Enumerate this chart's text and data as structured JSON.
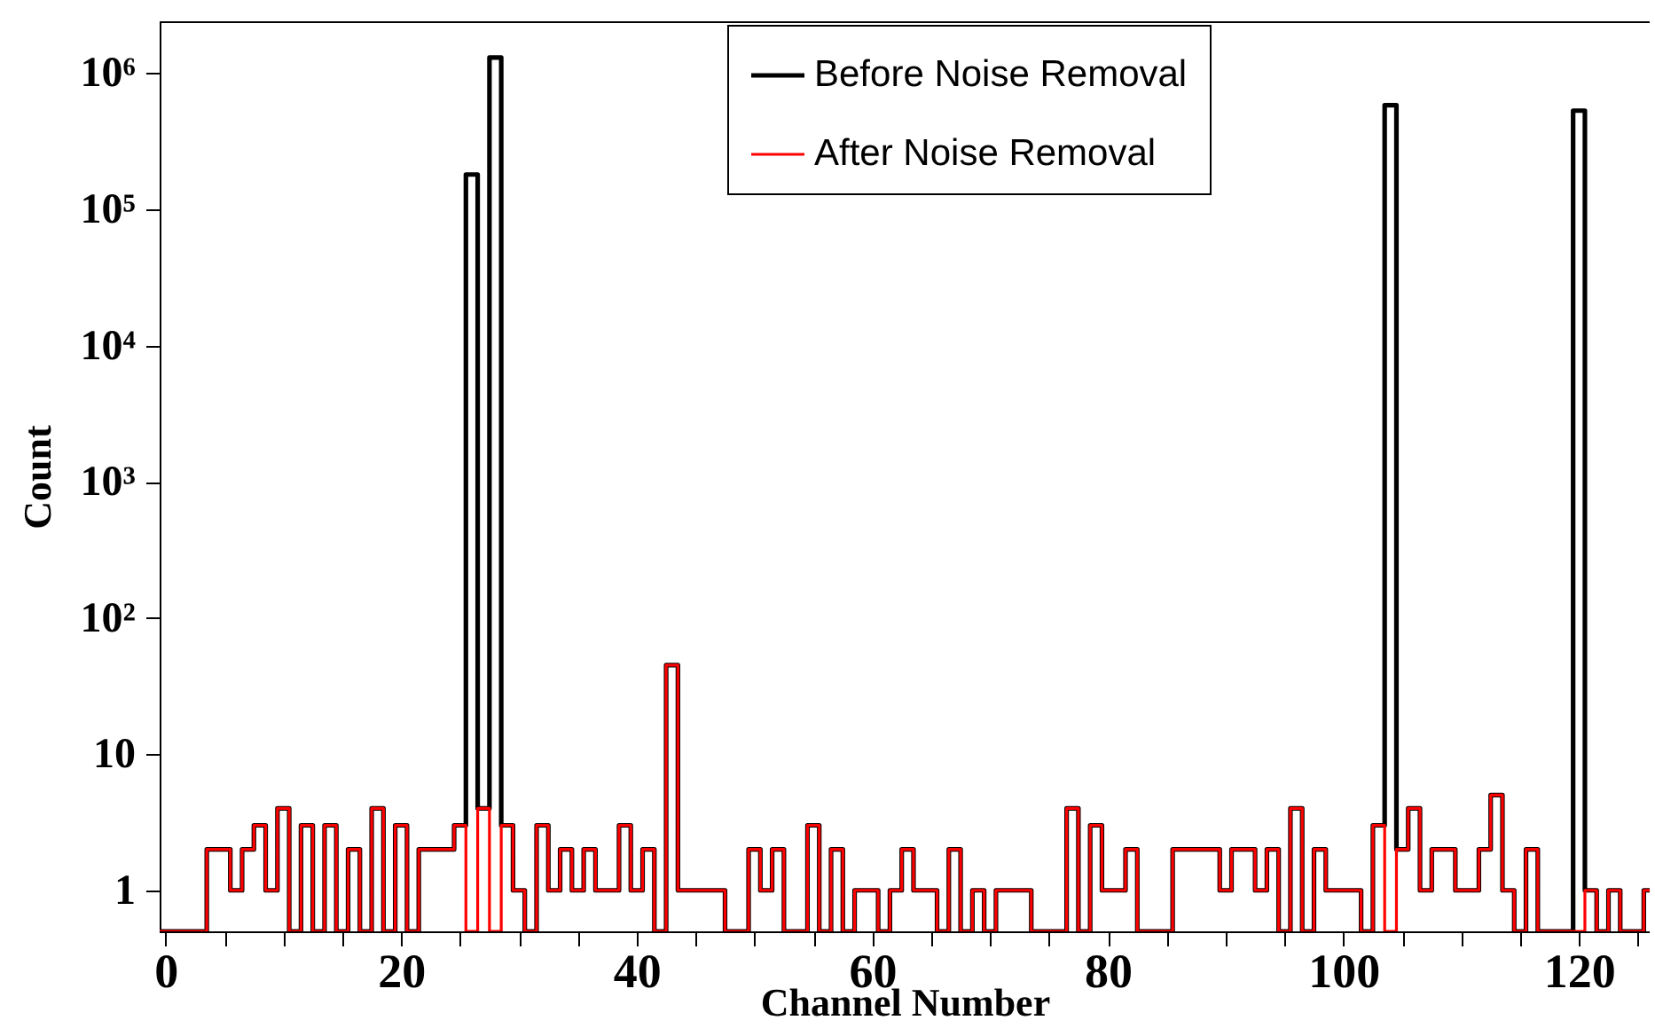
{
  "chart_data": {
    "type": "histogram",
    "xlabel": "Channel Number",
    "ylabel": "Count",
    "bins": [
      -0.5,
      0.5,
      1.5,
      2.5,
      3.5,
      4.5,
      5.5,
      6.5,
      7.5,
      8.5,
      9.5,
      10.5,
      11.5,
      12.5,
      13.5,
      14.5,
      15.5,
      16.5,
      17.5,
      18.5,
      19.5,
      20.5,
      21.5,
      22.5,
      23.5,
      24.5,
      25.5,
      26.5,
      27.5,
      28.5,
      29.5,
      30.5,
      31.5,
      32.5,
      33.5,
      34.5,
      35.5,
      36.5,
      37.5,
      38.5,
      39.5,
      40.5,
      41.5,
      42.5,
      43.5,
      44.5,
      45.5,
      46.5,
      47.5,
      48.5,
      49.5,
      50.5,
      51.5,
      52.5,
      53.5,
      54.5,
      55.5,
      56.5,
      57.5,
      58.5,
      59.5,
      60.5,
      61.5,
      62.5,
      63.5,
      64.5,
      65.5,
      66.5,
      67.5,
      68.5,
      69.5,
      70.5,
      71.5,
      72.5,
      73.5,
      74.5,
      75.5,
      76.5,
      77.5,
      78.5,
      79.5,
      80.5,
      81.5,
      82.5,
      83.5,
      84.5,
      85.5,
      86.5,
      87.5,
      88.5,
      89.5,
      90.5,
      91.5,
      92.5,
      93.5,
      94.5,
      95.5,
      96.5,
      97.5,
      98.5,
      99.5,
      100.5,
      101.5,
      102.5,
      103.5,
      104.5,
      105.5,
      106.5,
      107.5,
      108.5,
      109.5,
      110.5,
      111.5,
      112.5,
      113.5,
      114.5,
      115.5,
      116.5,
      117.5,
      118.5,
      119.5,
      120.5,
      121.5,
      122.5,
      123.5,
      124.5,
      125.5,
      126
    ],
    "series": [
      {
        "name": "Before Noise Removal",
        "color": "#000000",
        "values": [
          null,
          null,
          null,
          null,
          2,
          2,
          1,
          2,
          3,
          1,
          4,
          null,
          3,
          null,
          3,
          null,
          2,
          null,
          4,
          null,
          3,
          null,
          2,
          2,
          2,
          3,
          180000,
          4,
          1300000,
          3,
          1,
          null,
          3,
          1,
          2,
          1,
          2,
          1,
          1,
          3,
          1,
          2,
          null,
          45,
          1,
          1,
          1,
          1,
          null,
          null,
          2,
          1,
          2,
          null,
          null,
          3,
          null,
          2,
          null,
          1,
          1,
          null,
          1,
          2,
          1,
          1,
          null,
          2,
          null,
          1,
          null,
          1,
          1,
          1,
          null,
          null,
          null,
          4,
          null,
          3,
          1,
          1,
          2,
          null,
          null,
          null,
          2,
          2,
          2,
          2,
          1,
          2,
          2,
          1,
          2,
          null,
          4,
          null,
          2,
          1,
          1,
          1,
          null,
          3,
          580000,
          2,
          4,
          1,
          2,
          2,
          1,
          1,
          2,
          5,
          1,
          null,
          2,
          null,
          null,
          null,
          530000,
          1,
          null,
          1,
          null,
          null,
          1
        ]
      },
      {
        "name": "After Noise Removal",
        "color": "#ff0000",
        "values": [
          null,
          null,
          null,
          null,
          2,
          2,
          1,
          2,
          3,
          1,
          4,
          null,
          3,
          null,
          3,
          null,
          2,
          null,
          4,
          null,
          3,
          null,
          2,
          2,
          2,
          3,
          null,
          4,
          null,
          3,
          1,
          null,
          3,
          1,
          2,
          1,
          2,
          1,
          1,
          3,
          1,
          2,
          null,
          45,
          1,
          1,
          1,
          1,
          null,
          null,
          2,
          1,
          2,
          null,
          null,
          3,
          null,
          2,
          null,
          1,
          1,
          null,
          1,
          2,
          1,
          1,
          null,
          2,
          null,
          1,
          null,
          1,
          1,
          1,
          null,
          null,
          null,
          4,
          null,
          3,
          1,
          1,
          2,
          null,
          null,
          null,
          2,
          2,
          2,
          2,
          1,
          2,
          2,
          1,
          2,
          null,
          4,
          null,
          2,
          1,
          1,
          1,
          null,
          3,
          null,
          2,
          4,
          1,
          2,
          2,
          1,
          1,
          2,
          5,
          1,
          null,
          2,
          null,
          null,
          null,
          null,
          1,
          null,
          1,
          null,
          null,
          1
        ]
      }
    ],
    "xlim": [
      -0.5,
      126
    ],
    "xticks": [
      0,
      {
        "value": 5,
        "label": null
      },
      {
        "value": 10,
        "label": null
      },
      {
        "value": 15,
        "label": null
      },
      20,
      {
        "value": 25,
        "label": null
      },
      {
        "value": 30,
        "label": null
      },
      {
        "value": 35,
        "label": null
      },
      40,
      {
        "value": 45,
        "label": null
      },
      {
        "value": 50,
        "label": null
      },
      {
        "value": 55,
        "label": null
      },
      60,
      {
        "value": 65,
        "label": null
      },
      {
        "value": 70,
        "label": null
      },
      {
        "value": 75,
        "label": null
      },
      80,
      {
        "value": 85,
        "label": null
      },
      {
        "value": 90,
        "label": null
      },
      {
        "value": 95,
        "label": null
      },
      100,
      {
        "value": 105,
        "label": null
      },
      {
        "value": 110,
        "label": null
      },
      {
        "value": 115,
        "label": null
      },
      120,
      {
        "value": 125,
        "label": null
      }
    ],
    "ylim": [
      0.5,
      2400000
    ],
    "yticks": [
      1,
      10,
      {
        "value": 100,
        "label": "10²"
      },
      {
        "value": 1000,
        "label": "10³"
      },
      {
        "value": 10000,
        "label": "10⁴"
      },
      {
        "value": 100000,
        "label": "10⁵"
      },
      {
        "value": 1000000,
        "label": "10⁶"
      }
    ],
    "log": "y",
    "grid": false,
    "legend": "top"
  }
}
